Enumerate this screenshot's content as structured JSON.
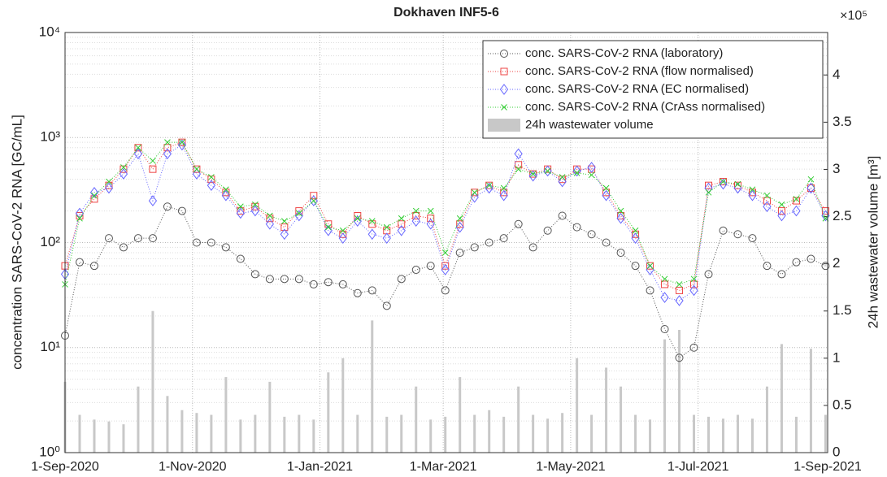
{
  "chart_data": {
    "type": "line",
    "title": "Dokhaven INF5-6",
    "ylabel": "concentration SARS-CoV-2 RNA [GC/mL]",
    "y2label": "24h wastewater volume [m³]",
    "y2exponent": "×10⁵",
    "x": [
      "2020-09-01",
      "2020-09-08",
      "2020-09-15",
      "2020-09-22",
      "2020-09-29",
      "2020-10-06",
      "2020-10-13",
      "2020-10-20",
      "2020-10-27",
      "2020-11-03",
      "2020-11-10",
      "2020-11-17",
      "2020-11-24",
      "2020-12-01",
      "2020-12-08",
      "2020-12-15",
      "2020-12-22",
      "2020-12-29",
      "2021-01-05",
      "2021-01-12",
      "2021-01-19",
      "2021-01-26",
      "2021-02-02",
      "2021-02-09",
      "2021-02-16",
      "2021-02-23",
      "2021-03-02",
      "2021-03-09",
      "2021-03-16",
      "2021-03-23",
      "2021-03-30",
      "2021-04-06",
      "2021-04-13",
      "2021-04-20",
      "2021-04-27",
      "2021-05-04",
      "2021-05-11",
      "2021-05-18",
      "2021-05-25",
      "2021-06-01",
      "2021-06-08",
      "2021-06-15",
      "2021-06-22",
      "2021-06-29",
      "2021-07-06",
      "2021-07-13",
      "2021-07-20",
      "2021-07-27",
      "2021-08-03",
      "2021-08-10",
      "2021-08-17",
      "2021-08-24",
      "2021-08-31"
    ],
    "xlim": [
      "2020-09-01",
      "2021-09-01"
    ],
    "xticks": [
      {
        "value": "2020-09-01",
        "label": "1-Sep-2020"
      },
      {
        "value": "2020-11-01",
        "label": "1-Nov-2020"
      },
      {
        "value": "2021-01-01",
        "label": "1-Jan-2021"
      },
      {
        "value": "2021-03-01",
        "label": "1-Mar-2021"
      },
      {
        "value": "2021-05-01",
        "label": "1-May-2021"
      },
      {
        "value": "2021-07-01",
        "label": "1-Jul-2021"
      },
      {
        "value": "2021-09-01",
        "label": "1-Sep-2021"
      }
    ],
    "ylim": [
      1,
      10000
    ],
    "yscale": "log",
    "yticks": [
      {
        "value": 1,
        "label": "10⁰"
      },
      {
        "value": 10,
        "label": "10¹"
      },
      {
        "value": 100,
        "label": "10²"
      },
      {
        "value": 1000,
        "label": "10³"
      },
      {
        "value": 10000,
        "label": "10⁴"
      }
    ],
    "y2lim": [
      0,
      445000
    ],
    "y2ticks": [
      {
        "value": 0,
        "label": "0"
      },
      {
        "value": 50000,
        "label": "0.5"
      },
      {
        "value": 100000,
        "label": "1"
      },
      {
        "value": 150000,
        "label": "1.5"
      },
      {
        "value": 200000,
        "label": "2"
      },
      {
        "value": 250000,
        "label": "2.5"
      },
      {
        "value": 300000,
        "label": "3"
      },
      {
        "value": 350000,
        "label": "3.5"
      },
      {
        "value": 400000,
        "label": "4"
      }
    ],
    "grid": true,
    "legend": "upper right",
    "series": [
      {
        "name": "conc. SARS-CoV-2 RNA (laboratory)",
        "color": "#555555",
        "marker": "circle",
        "values": [
          13,
          65,
          60,
          110,
          90,
          110,
          110,
          220,
          200,
          100,
          100,
          90,
          70,
          50,
          45,
          45,
          45,
          40,
          42,
          40,
          33,
          35,
          25,
          45,
          55,
          60,
          35,
          80,
          90,
          100,
          110,
          150,
          90,
          130,
          180,
          140,
          120,
          100,
          80,
          60,
          35,
          15,
          8,
          10,
          50,
          130,
          120,
          110,
          60,
          50,
          65,
          70,
          60
        ]
      },
      {
        "name": "conc. SARS-CoV-2 RNA (flow normalised)",
        "color": "#ee4444",
        "marker": "square",
        "values": [
          60,
          180,
          260,
          350,
          500,
          800,
          500,
          800,
          900,
          500,
          400,
          300,
          200,
          220,
          170,
          140,
          200,
          280,
          150,
          120,
          180,
          150,
          130,
          150,
          180,
          170,
          60,
          150,
          300,
          350,
          300,
          550,
          450,
          500,
          400,
          500,
          500,
          300,
          180,
          120,
          60,
          40,
          35,
          40,
          350,
          380,
          350,
          300,
          250,
          200,
          250,
          330,
          200
        ]
      },
      {
        "name": "conc. SARS-CoV-2 RNA (EC normalised)",
        "color": "#6666ff",
        "marker": "diamond",
        "values": [
          50,
          190,
          300,
          330,
          450,
          700,
          250,
          700,
          850,
          450,
          350,
          280,
          190,
          200,
          150,
          120,
          180,
          250,
          130,
          110,
          160,
          120,
          110,
          130,
          160,
          150,
          55,
          140,
          270,
          330,
          280,
          700,
          430,
          480,
          380,
          480,
          520,
          280,
          170,
          110,
          55,
          30,
          28,
          35,
          330,
          360,
          330,
          280,
          220,
          180,
          200,
          330,
          180
        ]
      },
      {
        "name": "conc. SARS-CoV-2 RNA (CrAss normalised)",
        "color": "#33cc33",
        "marker": "cross",
        "values": [
          40,
          170,
          280,
          380,
          520,
          800,
          600,
          900,
          900,
          500,
          420,
          320,
          220,
          230,
          180,
          160,
          190,
          250,
          140,
          130,
          170,
          160,
          140,
          170,
          200,
          200,
          80,
          170,
          300,
          350,
          330,
          500,
          450,
          480,
          420,
          460,
          440,
          330,
          200,
          130,
          60,
          45,
          40,
          45,
          300,
          380,
          360,
          320,
          280,
          230,
          260,
          400,
          170
        ]
      },
      {
        "name": "24h wastewater volume",
        "color": "#c8c8c8",
        "type": "bar",
        "axis": "y2",
        "values": [
          75000,
          40000,
          35000,
          33000,
          30000,
          70000,
          150000,
          60000,
          45000,
          42000,
          40000,
          80000,
          35000,
          40000,
          75000,
          38000,
          40000,
          35000,
          85000,
          100000,
          40000,
          140000,
          38000,
          40000,
          70000,
          35000,
          38000,
          80000,
          40000,
          45000,
          38000,
          70000,
          40000,
          36000,
          42000,
          100000,
          40000,
          90000,
          70000,
          40000,
          35000,
          120000,
          130000,
          40000,
          38000,
          36000,
          40000,
          36000,
          70000,
          115000,
          38000,
          110000,
          40000
        ]
      }
    ]
  }
}
